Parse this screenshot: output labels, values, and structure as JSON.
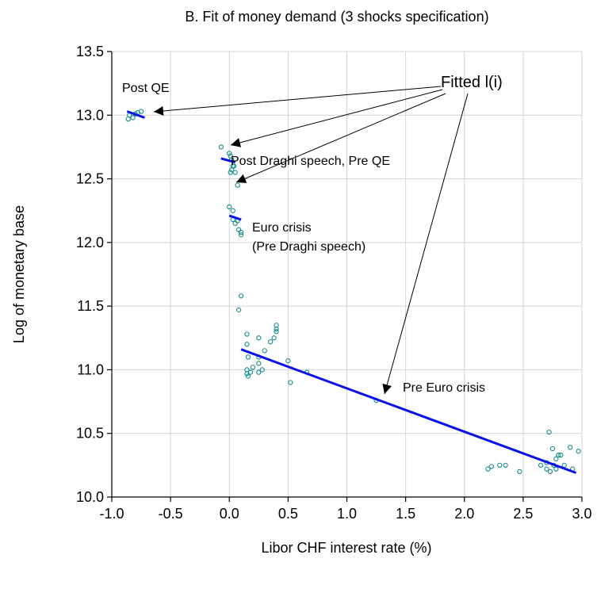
{
  "chart_data": {
    "type": "scatter",
    "title": "B. Fit of money demand (3 shocks specification)",
    "x_label": "Libor CHF interest rate (%)",
    "y_label": "Log of monetary base",
    "xlim": [
      -1,
      3
    ],
    "ylim": [
      10,
      13.5
    ],
    "xticks": [
      {
        "value": -1,
        "label": "-1.0"
      },
      -0.5,
      {
        "value": 0,
        "label": "0.0"
      },
      0.5,
      {
        "value": 1,
        "label": "1.0"
      },
      1.5,
      {
        "value": 2,
        "label": "2.0"
      },
      2.5,
      {
        "value": 3,
        "label": "3.0"
      }
    ],
    "yticks": [
      {
        "value": 10,
        "label": "10.0"
      },
      10.5,
      {
        "value": 11,
        "label": "11.0"
      },
      11.5,
      {
        "value": 12,
        "label": "12.0"
      },
      12.5,
      {
        "value": 13,
        "label": "13.0"
      },
      13.5
    ],
    "grid": true,
    "series": [
      {
        "type": "scatter",
        "color": "#138b8b",
        "x": [
          -0.86,
          -0.85,
          -0.82,
          -0.8,
          -0.78,
          -0.75,
          -0.07,
          0.0,
          0.01,
          0.02,
          0.03,
          0.02,
          0.01,
          0.05,
          0.04,
          0.07,
          0.0,
          0.03,
          0.03,
          0.05,
          0.07,
          0.08,
          0.1,
          0.1,
          0.1,
          0.08,
          0.15,
          0.15,
          0.16,
          0.15,
          0.15,
          0.16,
          0.18,
          0.2,
          0.25,
          0.25,
          0.25,
          0.25,
          0.28,
          0.3,
          0.35,
          0.38,
          0.4,
          0.4,
          0.4,
          0.5,
          0.52,
          0.66,
          1.25,
          2.2,
          2.23,
          2.3,
          2.35,
          2.47,
          2.65,
          2.7,
          2.72,
          2.73,
          2.75,
          2.76,
          2.78,
          2.78,
          2.8,
          2.82,
          2.85,
          2.9,
          2.92,
          2.97,
          2.7
        ],
        "values": [
          12.97,
          13.0,
          12.98,
          13.01,
          13.02,
          13.03,
          12.75,
          12.7,
          12.68,
          12.65,
          12.6,
          12.57,
          12.55,
          12.55,
          12.6,
          12.45,
          12.28,
          12.25,
          12.18,
          12.15,
          12.17,
          12.1,
          12.08,
          12.06,
          11.58,
          11.47,
          11.28,
          11.2,
          11.1,
          11.0,
          10.97,
          10.95,
          10.98,
          11.02,
          11.25,
          11.1,
          11.05,
          10.98,
          11.0,
          11.15,
          11.22,
          11.25,
          11.35,
          11.32,
          11.3,
          11.07,
          10.9,
          10.98,
          10.76,
          10.22,
          10.24,
          10.25,
          10.25,
          10.2,
          10.25,
          10.27,
          10.51,
          10.2,
          10.38,
          10.25,
          10.22,
          10.3,
          10.33,
          10.33,
          10.25,
          10.39,
          10.22,
          10.36,
          10.22
        ]
      },
      {
        "type": "line",
        "name": "Fitted l(i)",
        "color": "#0a14e6",
        "x": [
          -0.87,
          -0.72,
          null,
          -0.07,
          0.05,
          null,
          0.0,
          0.1,
          null,
          0.1,
          2.95
        ],
        "values": [
          13.03,
          12.98,
          null,
          12.66,
          12.63,
          null,
          12.21,
          12.18,
          null,
          11.16,
          10.19
        ]
      }
    ],
    "annotations": [
      "Post QE",
      "Post Draghi speech, Pre QE",
      "Euro crisis",
      "(Pre Draghi speech)",
      "Pre Euro crisis"
    ]
  }
}
